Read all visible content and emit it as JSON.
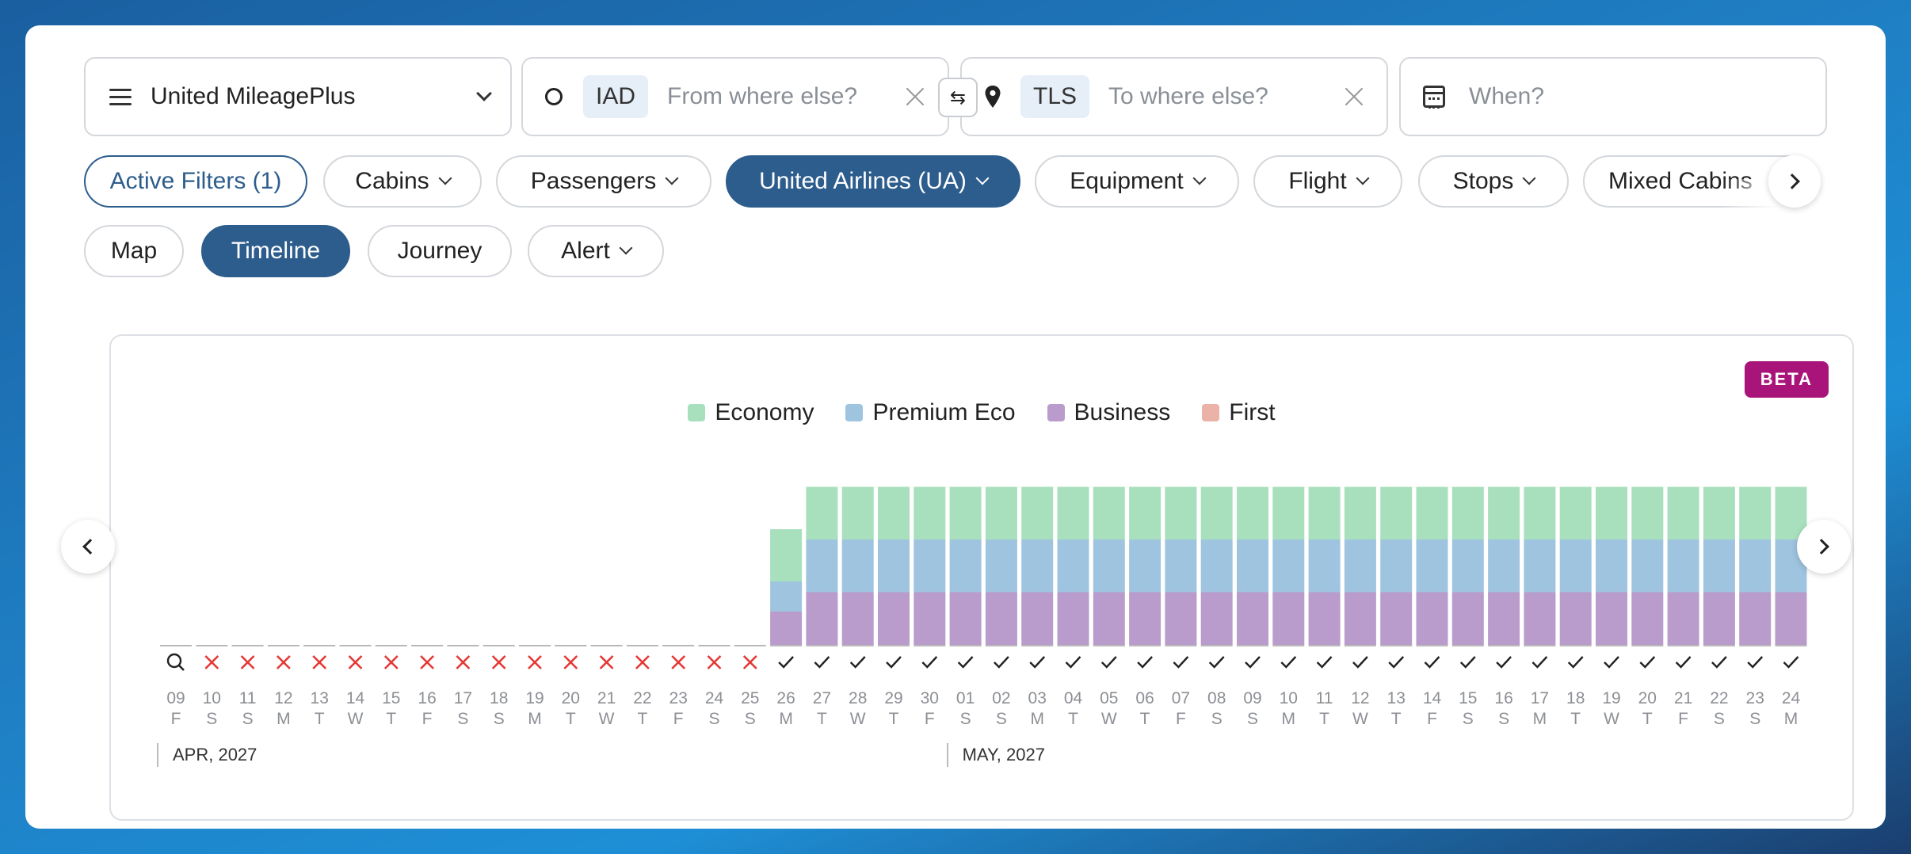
{
  "search": {
    "program": "United MileagePlus",
    "origin_code": "IAD",
    "origin_placeholder": "From where else?",
    "destination_code": "TLS",
    "destination_placeholder": "To where else?",
    "date_placeholder": "When?",
    "swap_glyph": "⇆"
  },
  "filters": {
    "active": "Active Filters (1)",
    "cabins": "Cabins",
    "passengers": "Passengers",
    "airline": "United Airlines (UA)",
    "equipment": "Equipment",
    "flight": "Flight",
    "stops": "Stops",
    "mixed": "Mixed Cabins"
  },
  "views": {
    "map": "Map",
    "timeline": "Timeline",
    "journey": "Journey",
    "alert": "Alert"
  },
  "colors": {
    "economy": "#a8e0bd",
    "premium": "#9fc4e0",
    "business": "#b99ccb",
    "first": "#ebb2a8",
    "unavailable": "#e53935",
    "accent": "#2d5d8c",
    "beta": "#a8147a"
  },
  "panel": {
    "badge": "BETA",
    "legend": [
      "Economy",
      "Premium Eco",
      "Business",
      "First"
    ]
  },
  "chart_data": {
    "type": "bar",
    "months": [
      {
        "label": "APR, 2027",
        "start_index": 0
      },
      {
        "label": "MAY, 2027",
        "start_index": 22
      }
    ],
    "days": [
      "09",
      "10",
      "11",
      "12",
      "13",
      "14",
      "15",
      "16",
      "17",
      "18",
      "19",
      "20",
      "21",
      "22",
      "23",
      "24",
      "25",
      "26",
      "27",
      "28",
      "29",
      "30",
      "01",
      "02",
      "03",
      "04",
      "05",
      "06",
      "07",
      "08",
      "09",
      "10",
      "11",
      "12",
      "13",
      "14",
      "15",
      "16",
      "17",
      "18",
      "19",
      "20",
      "21",
      "22",
      "23",
      "24"
    ],
    "weekdays": [
      "F",
      "S",
      "S",
      "M",
      "T",
      "W",
      "T",
      "F",
      "S",
      "S",
      "M",
      "T",
      "W",
      "T",
      "F",
      "S",
      "S",
      "M",
      "T",
      "W",
      "T",
      "F",
      "S",
      "S",
      "M",
      "T",
      "W",
      "T",
      "F",
      "S",
      "S",
      "M",
      "T",
      "W",
      "T",
      "F",
      "S",
      "S",
      "M",
      "T",
      "W",
      "T",
      "F",
      "S",
      "S",
      "M"
    ],
    "status": [
      "search",
      "none",
      "none",
      "none",
      "none",
      "none",
      "none",
      "none",
      "none",
      "none",
      "none",
      "none",
      "none",
      "none",
      "none",
      "none",
      "none",
      "available",
      "available",
      "available",
      "available",
      "available",
      "available",
      "available",
      "available",
      "available",
      "available",
      "available",
      "available",
      "available",
      "available",
      "available",
      "available",
      "available",
      "available",
      "available",
      "available",
      "available",
      "available",
      "available",
      "available",
      "available",
      "available",
      "available",
      "available",
      "available"
    ],
    "series": [
      {
        "name": "Business",
        "values": [
          0,
          0,
          0,
          0,
          0,
          0,
          0,
          0,
          0,
          0,
          0,
          0,
          0,
          0,
          0,
          0,
          0,
          1,
          1,
          1,
          1,
          1,
          1,
          1,
          1,
          1,
          1,
          1,
          1,
          1,
          1,
          1,
          1,
          1,
          1,
          1,
          1,
          1,
          1,
          1,
          1,
          1,
          1,
          1,
          1,
          1
        ]
      },
      {
        "name": "Premium Eco",
        "values": [
          0,
          0,
          0,
          0,
          0,
          0,
          0,
          0,
          0,
          0,
          0,
          0,
          0,
          0,
          0,
          0,
          0,
          1,
          1,
          1,
          1,
          1,
          1,
          1,
          1,
          1,
          1,
          1,
          1,
          1,
          1,
          1,
          1,
          1,
          1,
          1,
          1,
          1,
          1,
          1,
          1,
          1,
          1,
          1,
          1,
          1
        ]
      },
      {
        "name": "Economy",
        "values": [
          0,
          0,
          0,
          0,
          0,
          0,
          0,
          0,
          0,
          0,
          0,
          0,
          0,
          0,
          0,
          0,
          0,
          1,
          1,
          1,
          1,
          1,
          1,
          1,
          1,
          1,
          1,
          1,
          1,
          1,
          1,
          1,
          1,
          1,
          1,
          1,
          1,
          1,
          1,
          1,
          1,
          1,
          1,
          1,
          1,
          1
        ]
      },
      {
        "name": "First",
        "values": [
          0,
          0,
          0,
          0,
          0,
          0,
          0,
          0,
          0,
          0,
          0,
          0,
          0,
          0,
          0,
          0,
          0,
          0,
          0,
          0,
          0,
          0,
          0,
          0,
          0,
          0,
          0,
          0,
          0,
          0,
          0,
          0,
          0,
          0,
          0,
          0,
          0,
          0,
          0,
          0,
          0,
          0,
          0,
          0,
          0,
          0
        ]
      }
    ]
  }
}
